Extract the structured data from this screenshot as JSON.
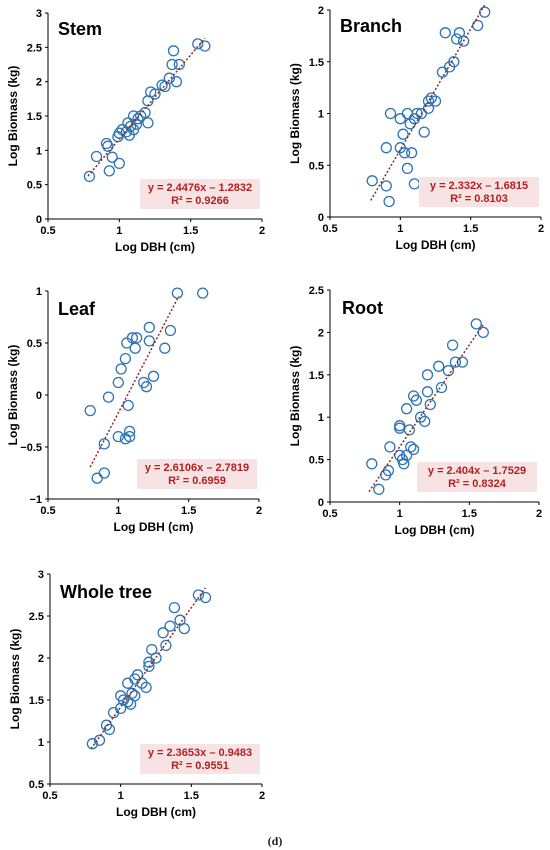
{
  "caption": "(d)",
  "theme": {
    "marker_color": "#2e74b5",
    "trend_color": "#8b2a2a",
    "equation_color": "#b22222",
    "equation_bg": "#f7e3e3",
    "axis_color": "#000000"
  },
  "chart_data": [
    {
      "type": "scatter",
      "title": "Stem",
      "xlabel": "Log DBH (cm)",
      "ylabel": "Log Biomass (kg)",
      "xlim": [
        0.5,
        2
      ],
      "ylim": [
        0,
        3
      ],
      "xticks": [
        "0.5",
        "1",
        "1.5",
        "2"
      ],
      "yticks": [
        "0",
        "0.5",
        "1",
        "1.5",
        "2",
        "2.5",
        "3"
      ],
      "grid": false,
      "legend": "none",
      "equation": "y = 2.4476x – 1.2832",
      "r2": "R² = 0.9266",
      "trend": {
        "slope": 2.4476,
        "intercept": -1.2832,
        "x_range": [
          0.78,
          1.6
        ]
      },
      "points": [
        [
          0.79,
          0.62
        ],
        [
          0.84,
          0.91
        ],
        [
          0.91,
          1.1
        ],
        [
          0.92,
          1.06
        ],
        [
          0.93,
          0.7
        ],
        [
          0.95,
          0.9
        ],
        [
          0.99,
          1.2
        ],
        [
          1.0,
          1.25
        ],
        [
          1.0,
          0.81
        ],
        [
          1.02,
          1.3
        ],
        [
          1.05,
          1.27
        ],
        [
          1.06,
          1.4
        ],
        [
          1.07,
          1.22
        ],
        [
          1.08,
          1.35
        ],
        [
          1.1,
          1.3
        ],
        [
          1.1,
          1.5
        ],
        [
          1.12,
          1.38
        ],
        [
          1.13,
          1.46
        ],
        [
          1.15,
          1.5
        ],
        [
          1.18,
          1.55
        ],
        [
          1.2,
          1.4
        ],
        [
          1.2,
          1.72
        ],
        [
          1.22,
          1.85
        ],
        [
          1.25,
          1.82
        ],
        [
          1.3,
          1.95
        ],
        [
          1.32,
          1.93
        ],
        [
          1.35,
          2.05
        ],
        [
          1.37,
          2.25
        ],
        [
          1.38,
          2.45
        ],
        [
          1.4,
          2.0
        ],
        [
          1.42,
          2.25
        ],
        [
          1.55,
          2.55
        ],
        [
          1.6,
          2.52
        ]
      ]
    },
    {
      "type": "scatter",
      "title": "Branch",
      "xlabel": "Log DBH (cm)",
      "ylabel": "Log Biomass (kg)",
      "xlim": [
        0.5,
        2
      ],
      "ylim": [
        0,
        2
      ],
      "xticks": [
        "0.5",
        "1",
        "1.5",
        "2"
      ],
      "yticks": [
        "0",
        "0.5",
        "1",
        "1.5",
        "2"
      ],
      "grid": false,
      "legend": "none",
      "equation": "y = 2.332x – 1.6815",
      "r2": "R² = 0.8103",
      "trend": {
        "slope": 2.332,
        "intercept": -1.6815,
        "x_range": [
          0.79,
          1.6
        ]
      },
      "points": [
        [
          0.8,
          0.35
        ],
        [
          0.9,
          0.3
        ],
        [
          0.92,
          0.15
        ],
        [
          0.9,
          0.67
        ],
        [
          0.93,
          1.0
        ],
        [
          1.0,
          0.95
        ],
        [
          1.0,
          0.67
        ],
        [
          1.02,
          0.8
        ],
        [
          1.03,
          0.62
        ],
        [
          1.05,
          0.47
        ],
        [
          1.05,
          1.0
        ],
        [
          1.07,
          0.9
        ],
        [
          1.08,
          0.62
        ],
        [
          1.1,
          0.32
        ],
        [
          1.1,
          0.95
        ],
        [
          1.12,
          1.0
        ],
        [
          1.15,
          1.0
        ],
        [
          1.17,
          0.82
        ],
        [
          1.2,
          1.05
        ],
        [
          1.2,
          1.12
        ],
        [
          1.22,
          1.15
        ],
        [
          1.25,
          1.12
        ],
        [
          1.3,
          1.4
        ],
        [
          1.32,
          1.78
        ],
        [
          1.35,
          1.45
        ],
        [
          1.38,
          1.5
        ],
        [
          1.4,
          1.72
        ],
        [
          1.42,
          1.78
        ],
        [
          1.45,
          1.7
        ],
        [
          1.55,
          1.85
        ],
        [
          1.6,
          1.98
        ]
      ]
    },
    {
      "type": "scatter",
      "title": "Leaf",
      "xlabel": "Log DBH (cm)",
      "ylabel": "Log Biomass (kg)",
      "xlim": [
        0.5,
        2
      ],
      "ylim": [
        -1,
        1
      ],
      "xticks": [
        "0.5",
        "1",
        "1.5",
        "2"
      ],
      "yticks": [
        "−1",
        "−0.5",
        "0",
        "0.5",
        "1"
      ],
      "grid": false,
      "legend": "none",
      "equation": "y = 2.6106x – 2.7819",
      "r2": "R² = 0.6959",
      "trend": {
        "slope": 2.6106,
        "intercept": -2.7819,
        "x_range": [
          0.8,
          1.43
        ]
      },
      "points": [
        [
          0.8,
          -0.15
        ],
        [
          0.85,
          -0.8
        ],
        [
          0.9,
          -0.75
        ],
        [
          0.9,
          -0.47
        ],
        [
          0.93,
          -0.02
        ],
        [
          1.0,
          0.12
        ],
        [
          1.0,
          -0.4
        ],
        [
          1.02,
          0.25
        ],
        [
          1.05,
          -0.42
        ],
        [
          1.05,
          0.35
        ],
        [
          1.06,
          0.5
        ],
        [
          1.07,
          -0.1
        ],
        [
          1.08,
          -0.35
        ],
        [
          1.08,
          -0.4
        ],
        [
          1.1,
          0.55
        ],
        [
          1.12,
          0.45
        ],
        [
          1.13,
          0.55
        ],
        [
          1.18,
          0.12
        ],
        [
          1.2,
          0.08
        ],
        [
          1.22,
          0.65
        ],
        [
          1.22,
          0.52
        ],
        [
          1.25,
          0.18
        ],
        [
          1.33,
          0.45
        ],
        [
          1.37,
          0.62
        ],
        [
          1.42,
          0.98
        ],
        [
          1.6,
          0.98
        ]
      ]
    },
    {
      "type": "scatter",
      "title": "Root",
      "xlabel": "Log DBH (cm)",
      "ylabel": "Log Biomass (kg)",
      "xlim": [
        0.5,
        2
      ],
      "ylim": [
        0,
        2.5
      ],
      "xticks": [
        "0.5",
        "1",
        "1.5",
        "2"
      ],
      "yticks": [
        "0",
        "0.5",
        "1",
        "1.5",
        "2",
        "2.5"
      ],
      "grid": false,
      "legend": "none",
      "equation": "y = 2.404x – 1.7529",
      "r2": "R² = 0.8324",
      "trend": {
        "slope": 2.404,
        "intercept": -1.7529,
        "x_range": [
          0.78,
          1.6
        ]
      },
      "points": [
        [
          0.8,
          0.45
        ],
        [
          0.85,
          0.15
        ],
        [
          0.9,
          0.32
        ],
        [
          0.92,
          0.37
        ],
        [
          0.93,
          0.65
        ],
        [
          1.0,
          0.87
        ],
        [
          1.0,
          0.55
        ],
        [
          1.0,
          0.9
        ],
        [
          1.02,
          0.5
        ],
        [
          1.03,
          0.45
        ],
        [
          1.05,
          0.55
        ],
        [
          1.05,
          1.1
        ],
        [
          1.07,
          0.85
        ],
        [
          1.08,
          0.65
        ],
        [
          1.1,
          0.62
        ],
        [
          1.1,
          1.25
        ],
        [
          1.12,
          1.2
        ],
        [
          1.15,
          1.0
        ],
        [
          1.18,
          0.95
        ],
        [
          1.2,
          1.5
        ],
        [
          1.2,
          1.3
        ],
        [
          1.22,
          1.15
        ],
        [
          1.28,
          1.6
        ],
        [
          1.3,
          1.35
        ],
        [
          1.35,
          1.55
        ],
        [
          1.38,
          1.85
        ],
        [
          1.4,
          1.65
        ],
        [
          1.45,
          1.65
        ],
        [
          1.55,
          2.1
        ],
        [
          1.6,
          2.0
        ]
      ]
    },
    {
      "type": "scatter",
      "title": "Whole tree",
      "xlabel": "Log DBH (cm)",
      "ylabel": "Log Biomass (kg)",
      "xlim": [
        0.5,
        2
      ],
      "ylim": [
        0.5,
        3
      ],
      "xticks": [
        "0.5",
        "1",
        "1.5",
        "2"
      ],
      "yticks": [
        "0.5",
        "1",
        "1.5",
        "2",
        "2.5",
        "3"
      ],
      "grid": false,
      "legend": "none",
      "equation": "y = 2.3653x – 0.9483",
      "r2": "R² = 0.9551",
      "trend": {
        "slope": 2.3653,
        "intercept": -0.9483,
        "x_range": [
          0.79,
          1.6
        ]
      },
      "points": [
        [
          0.8,
          0.98
        ],
        [
          0.85,
          1.02
        ],
        [
          0.9,
          1.2
        ],
        [
          0.92,
          1.15
        ],
        [
          0.95,
          1.35
        ],
        [
          1.0,
          1.4
        ],
        [
          1.0,
          1.55
        ],
        [
          1.02,
          1.5
        ],
        [
          1.05,
          1.48
        ],
        [
          1.05,
          1.7
        ],
        [
          1.07,
          1.45
        ],
        [
          1.08,
          1.58
        ],
        [
          1.1,
          1.55
        ],
        [
          1.1,
          1.75
        ],
        [
          1.12,
          1.8
        ],
        [
          1.15,
          1.7
        ],
        [
          1.18,
          1.65
        ],
        [
          1.2,
          1.9
        ],
        [
          1.2,
          1.95
        ],
        [
          1.22,
          2.1
        ],
        [
          1.25,
          2.0
        ],
        [
          1.3,
          2.3
        ],
        [
          1.32,
          2.15
        ],
        [
          1.35,
          2.38
        ],
        [
          1.38,
          2.6
        ],
        [
          1.42,
          2.45
        ],
        [
          1.45,
          2.35
        ],
        [
          1.55,
          2.75
        ],
        [
          1.6,
          2.72
        ]
      ]
    }
  ]
}
